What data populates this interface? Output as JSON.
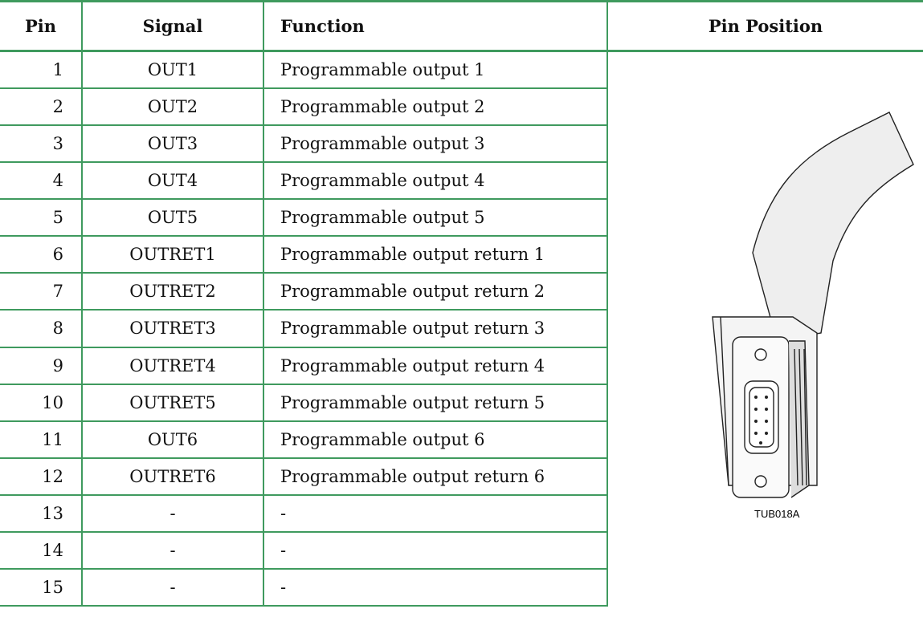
{
  "table": {
    "headers": [
      "Pin",
      "Signal",
      "Function",
      "Pin Position"
    ],
    "rows": [
      [
        "1",
        "OUT1",
        "Programmable output 1"
      ],
      [
        "2",
        "OUT2",
        "Programmable output 2"
      ],
      [
        "3",
        "OUT3",
        "Programmable output 3"
      ],
      [
        "4",
        "OUT4",
        "Programmable output 4"
      ],
      [
        "5",
        "OUT5",
        "Programmable output 5"
      ],
      [
        "6",
        "OUTRET1",
        "Programmable output return 1"
      ],
      [
        "7",
        "OUTRET2",
        "Programmable output return 2"
      ],
      [
        "8",
        "OUTRET3",
        "Programmable output return 3"
      ],
      [
        "9",
        "OUTRET4",
        "Programmable output return 4"
      ],
      [
        "10",
        "OUTRET5",
        "Programmable output return 5"
      ],
      [
        "11",
        "OUT6",
        "Programmable output 6"
      ],
      [
        "12",
        "OUTRET6",
        "Programmable output return 6"
      ],
      [
        "13",
        "-",
        "-"
      ],
      [
        "14",
        "-",
        "-"
      ],
      [
        "15",
        "-",
        "-"
      ]
    ]
  },
  "figure": {
    "label": "TUB018A"
  }
}
